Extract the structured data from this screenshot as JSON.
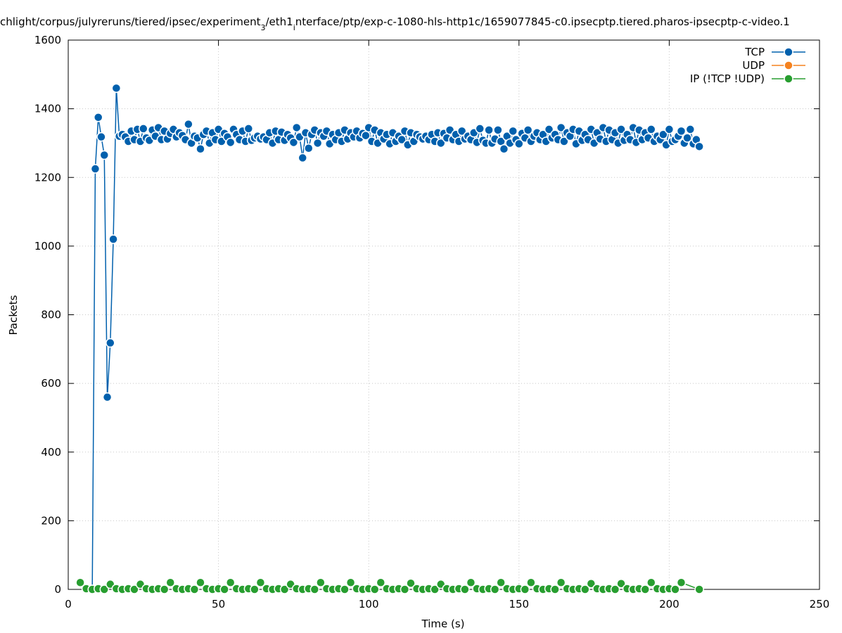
{
  "chart_data": {
    "type": "line",
    "title_parts": [
      {
        "text": "chlight/corpus/julyreruns/tiered/ipsec/experiment",
        "sub": false
      },
      {
        "text": "3",
        "sub": true
      },
      {
        "text": "/eth1",
        "sub": false
      },
      {
        "text": "i",
        "sub": true
      },
      {
        "text": "nterface/ptp/exp-c-1080-hls-http1c/1659077845-c0.ipsecptp.tiered.pharos-ipsecptp-c-video.1",
        "sub": false
      }
    ],
    "xlabel": "Time (s)",
    "ylabel": "Packets",
    "xlim": [
      0,
      250
    ],
    "xticks": [
      0,
      50,
      100,
      150,
      200,
      250
    ],
    "ylim": [
      0,
      1600
    ],
    "yticks": [
      0,
      200,
      400,
      600,
      800,
      1000,
      1200,
      1400,
      1600
    ],
    "grid": true,
    "legend": "top-right",
    "series": [
      {
        "name": "TCP",
        "color": "#0060ad",
        "x": [
          8,
          9,
          10,
          11,
          12,
          13,
          14,
          15,
          16,
          17,
          18,
          19,
          20,
          21,
          22,
          23,
          24,
          25,
          26,
          27,
          28,
          29,
          30,
          31,
          32,
          33,
          34,
          35,
          36,
          37,
          38,
          39,
          40,
          41,
          42,
          43,
          44,
          45,
          46,
          47,
          48,
          49,
          50,
          51,
          52,
          53,
          54,
          55,
          56,
          57,
          58,
          59,
          60,
          61,
          62,
          63,
          64,
          65,
          66,
          67,
          68,
          69,
          70,
          71,
          72,
          73,
          74,
          75,
          76,
          77,
          78,
          79,
          80,
          81,
          82,
          83,
          84,
          85,
          86,
          87,
          88,
          89,
          90,
          91,
          92,
          93,
          94,
          95,
          96,
          97,
          98,
          99,
          100,
          101,
          102,
          103,
          104,
          105,
          106,
          107,
          108,
          109,
          110,
          111,
          112,
          113,
          114,
          115,
          116,
          117,
          118,
          119,
          120,
          121,
          122,
          123,
          124,
          125,
          126,
          127,
          128,
          129,
          130,
          131,
          132,
          133,
          134,
          135,
          136,
          137,
          138,
          139,
          140,
          141,
          142,
          143,
          144,
          145,
          146,
          147,
          148,
          149,
          150,
          151,
          152,
          153,
          154,
          155,
          156,
          157,
          158,
          159,
          160,
          161,
          162,
          163,
          164,
          165,
          166,
          167,
          168,
          169,
          170,
          171,
          172,
          173,
          174,
          175,
          176,
          177,
          178,
          179,
          180,
          181,
          182,
          183,
          184,
          185,
          186,
          187,
          188,
          189,
          190,
          191,
          192,
          193,
          194,
          195,
          196,
          197,
          198,
          199,
          200,
          201,
          202,
          203,
          204,
          205,
          206,
          207,
          208,
          209,
          210
        ],
        "values": [
          0,
          1225,
          1375,
          1318,
          1265,
          560,
          718,
          1020,
          1460,
          1320,
          1325,
          1318,
          1305,
          1335,
          1310,
          1340,
          1305,
          1342,
          1315,
          1308,
          1338,
          1320,
          1345,
          1310,
          1335,
          1312,
          1328,
          1340,
          1318,
          1330,
          1322,
          1310,
          1355,
          1300,
          1320,
          1315,
          1283,
          1325,
          1335,
          1300,
          1330,
          1310,
          1340,
          1305,
          1328,
          1318,
          1302,
          1340,
          1325,
          1310,
          1335,
          1305,
          1342,
          1308,
          1315,
          1320,
          1312,
          1318,
          1310,
          1330,
          1300,
          1335,
          1310,
          1332,
          1308,
          1325,
          1315,
          1302,
          1345,
          1318,
          1257,
          1330,
          1285,
          1325,
          1338,
          1300,
          1330,
          1320,
          1335,
          1298,
          1325,
          1310,
          1330,
          1305,
          1338,
          1312,
          1330,
          1318,
          1335,
          1315,
          1328,
          1322,
          1345,
          1305,
          1338,
          1300,
          1330,
          1312,
          1325,
          1298,
          1330,
          1305,
          1320,
          1310,
          1335,
          1295,
          1330,
          1305,
          1325,
          1318,
          1312,
          1320,
          1310,
          1325,
          1305,
          1330,
          1300,
          1328,
          1315,
          1338,
          1310,
          1325,
          1305,
          1335,
          1312,
          1320,
          1310,
          1330,
          1302,
          1342,
          1308,
          1300,
          1338,
          1300,
          1312,
          1338,
          1305,
          1283,
          1320,
          1300,
          1335,
          1310,
          1298,
          1328,
          1315,
          1338,
          1305,
          1320,
          1330,
          1310,
          1325,
          1305,
          1340,
          1315,
          1325,
          1310,
          1345,
          1305,
          1330,
          1320,
          1340,
          1298,
          1335,
          1308,
          1325,
          1310,
          1340,
          1300,
          1330,
          1312,
          1345,
          1305,
          1338,
          1310,
          1330,
          1300,
          1340,
          1308,
          1325,
          1310,
          1345,
          1302,
          1338,
          1310,
          1330,
          1315,
          1340,
          1305,
          1320,
          1310,
          1325,
          1295,
          1340,
          1305,
          1310,
          1320,
          1335,
          1300,
          1315,
          1340,
          1298,
          1310,
          1290
        ]
      },
      {
        "name": "UDP",
        "color": "#f5821f",
        "x": [],
        "values": []
      },
      {
        "name": "IP (!TCP  !UDP)",
        "color": "#289e30",
        "x": [
          4,
          6,
          8,
          10,
          12,
          14,
          16,
          18,
          20,
          22,
          24,
          26,
          28,
          30,
          32,
          34,
          36,
          38,
          40,
          42,
          44,
          46,
          48,
          50,
          52,
          54,
          56,
          58,
          60,
          62,
          64,
          66,
          68,
          70,
          72,
          74,
          76,
          78,
          80,
          82,
          84,
          86,
          88,
          90,
          92,
          94,
          96,
          98,
          100,
          102,
          104,
          106,
          108,
          110,
          112,
          114,
          116,
          118,
          120,
          122,
          124,
          126,
          128,
          130,
          132,
          134,
          136,
          138,
          140,
          142,
          144,
          146,
          148,
          150,
          152,
          154,
          156,
          158,
          160,
          162,
          164,
          166,
          168,
          170,
          172,
          174,
          176,
          178,
          180,
          182,
          184,
          186,
          188,
          190,
          192,
          194,
          196,
          198,
          200,
          202,
          204,
          210
        ],
        "values": [
          20,
          2,
          0,
          2,
          0,
          15,
          2,
          0,
          2,
          0,
          15,
          2,
          0,
          2,
          0,
          20,
          2,
          0,
          2,
          0,
          20,
          2,
          0,
          2,
          0,
          20,
          2,
          0,
          2,
          0,
          20,
          2,
          0,
          2,
          0,
          15,
          2,
          0,
          2,
          0,
          20,
          2,
          0,
          2,
          0,
          20,
          2,
          0,
          2,
          0,
          20,
          2,
          0,
          2,
          0,
          18,
          2,
          0,
          2,
          0,
          15,
          2,
          0,
          2,
          0,
          20,
          2,
          0,
          2,
          0,
          20,
          2,
          0,
          2,
          0,
          20,
          2,
          0,
          2,
          0,
          20,
          2,
          0,
          2,
          0,
          17,
          2,
          0,
          2,
          0,
          17,
          2,
          0,
          2,
          0,
          20,
          2,
          0,
          2,
          0,
          20,
          0
        ]
      }
    ]
  }
}
